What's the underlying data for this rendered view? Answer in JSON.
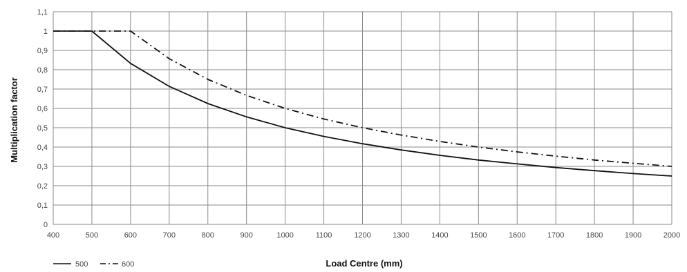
{
  "chart_data": {
    "type": "line",
    "xlabel": "Load Centre (mm)",
    "ylabel": "Multiplication factor",
    "xlim": [
      400,
      2000
    ],
    "ylim": [
      0,
      1.1
    ],
    "x_ticks": [
      "400",
      "500",
      "600",
      "700",
      "800",
      "900",
      "1000",
      "1100",
      "1200",
      "1300",
      "1400",
      "1500",
      "1600",
      "1700",
      "1800",
      "1900",
      "2000"
    ],
    "y_ticks": [
      "0",
      "0,1",
      "0,2",
      "0,3",
      "0,4",
      "0,5",
      "0,6",
      "0,7",
      "0,8",
      "0,9",
      "1",
      "1,1"
    ],
    "grid": true,
    "legend_position": "bottom-left",
    "series": [
      {
        "name": "500",
        "line_style": "solid",
        "color": "#111111",
        "x": [
          400,
          500,
          600,
          700,
          800,
          900,
          1000,
          1100,
          1200,
          1300,
          1400,
          1500,
          1600,
          1700,
          1800,
          1900,
          2000
        ],
        "y": [
          1,
          1,
          0.833,
          0.714,
          0.625,
          0.556,
          0.5,
          0.455,
          0.417,
          0.385,
          0.357,
          0.333,
          0.313,
          0.294,
          0.278,
          0.263,
          0.25
        ]
      },
      {
        "name": "600",
        "line_style": "dash-dot",
        "color": "#111111",
        "x": [
          400,
          500,
          600,
          700,
          800,
          900,
          1000,
          1100,
          1200,
          1300,
          1400,
          1500,
          1600,
          1700,
          1800,
          1900,
          2000
        ],
        "y": [
          1,
          1,
          1,
          0.857,
          0.75,
          0.667,
          0.6,
          0.545,
          0.5,
          0.462,
          0.429,
          0.4,
          0.375,
          0.353,
          0.333,
          0.316,
          0.3
        ]
      }
    ]
  }
}
